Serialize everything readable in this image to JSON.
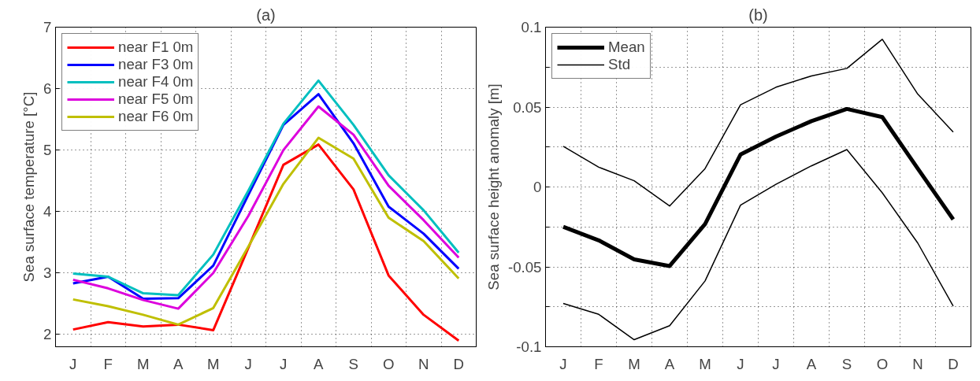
{
  "chart_data": [
    {
      "type": "line",
      "title": "(a)",
      "ylabel": "Sea surface temperature [°C]",
      "categories": [
        "J",
        "F",
        "M",
        "A",
        "M",
        "J",
        "J",
        "A",
        "S",
        "O",
        "N",
        "D"
      ],
      "ylim": [
        1.8,
        7
      ],
      "yticks": [
        2,
        3,
        4,
        5,
        6,
        7
      ],
      "grid": true,
      "legend": "top left",
      "line_style": "solid",
      "series": [
        {
          "name": "near F1 0m",
          "color": "#ff0000",
          "values": [
            2.08,
            2.2,
            2.13,
            2.16,
            2.07,
            3.41,
            4.76,
            5.09,
            4.36,
            2.96,
            2.32,
            1.9
          ]
        },
        {
          "name": "near F3 0m",
          "color": "#0000ff",
          "values": [
            2.83,
            2.94,
            2.58,
            2.59,
            3.12,
            4.27,
            5.41,
            5.91,
            5.11,
            4.08,
            3.64,
            3.07
          ]
        },
        {
          "name": "near F4 0m",
          "color": "#00bfbf",
          "values": [
            2.99,
            2.94,
            2.67,
            2.64,
            3.3,
            4.34,
            5.43,
            6.13,
            5.41,
            4.59,
            4.02,
            3.33
          ]
        },
        {
          "name": "near F5 0m",
          "color": "#dd00dd",
          "values": [
            2.89,
            2.75,
            2.56,
            2.42,
            3.0,
            3.93,
            5.0,
            5.71,
            5.25,
            4.42,
            3.86,
            3.25
          ]
        },
        {
          "name": "near F6 0m",
          "color": "#bfbf00",
          "values": [
            2.57,
            2.46,
            2.32,
            2.16,
            2.43,
            3.43,
            4.45,
            5.2,
            4.86,
            3.9,
            3.52,
            2.91
          ]
        }
      ]
    },
    {
      "type": "line",
      "title": "(b)",
      "ylabel": "Sea surface height anomaly [m]",
      "categories": [
        "J",
        "F",
        "M",
        "A",
        "M",
        "J",
        "J",
        "A",
        "S",
        "O",
        "N",
        "D"
      ],
      "ylim": [
        -0.1,
        0.1
      ],
      "yticks": [
        -0.1,
        {
          "value": -0.075,
          "label": null
        },
        -0.05,
        {
          "value": -0.025,
          "label": null
        },
        0,
        {
          "value": 0.025,
          "label": null
        },
        0.05,
        {
          "value": 0.075,
          "label": null
        },
        0.1
      ],
      "grid": true,
      "legend": "top left",
      "line_style": "solid",
      "series": [
        {
          "name": "Mean",
          "color": "#000000",
          "values": [
            -0.0249,
            -0.0334,
            -0.0453,
            -0.0495,
            -0.0232,
            0.0203,
            0.0315,
            0.0412,
            0.0488,
            0.0437,
            0.0115,
            -0.0203
          ]
        },
        {
          "name": "Std",
          "color": "#000000",
          "values": [
            0.0254,
            0.0124,
            0.0039,
            -0.0119,
            0.0115,
            0.0514,
            0.0624,
            0.0695,
            0.0742,
            0.0924,
            0.0581,
            0.0344
          ]
        },
        {
          "color": "#000000",
          "values": [
            -0.0729,
            -0.0797,
            -0.0956,
            -0.0868,
            -0.0588,
            -0.0114,
            0.0017,
            0.0132,
            0.0234,
            -0.0037,
            -0.0351,
            -0.0746
          ]
        }
      ]
    }
  ]
}
